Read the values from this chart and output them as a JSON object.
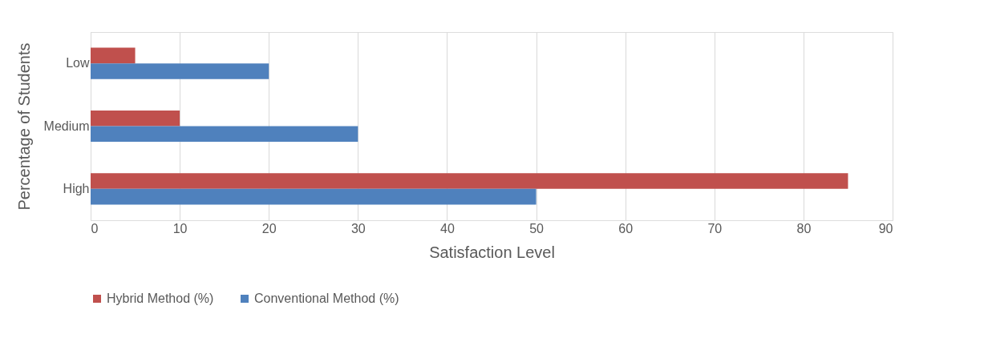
{
  "chart_data": {
    "type": "bar",
    "orientation": "horizontal",
    "xlabel": "Satisfaction Level",
    "ylabel": "Percentage of Students",
    "categories": [
      "Low",
      "Medium",
      "High"
    ],
    "series": [
      {
        "name": "Hybrid Method (%)",
        "color": "#c0504d",
        "values": [
          5,
          10,
          85
        ]
      },
      {
        "name": "Conventional Method (%)",
        "color": "#4f81bd",
        "values": [
          20,
          30,
          50
        ]
      }
    ],
    "xlim": [
      0,
      90
    ],
    "xticks": [
      0,
      10,
      20,
      30,
      40,
      50,
      60,
      70,
      80,
      90
    ],
    "grid": "x",
    "legend": "bottom"
  }
}
